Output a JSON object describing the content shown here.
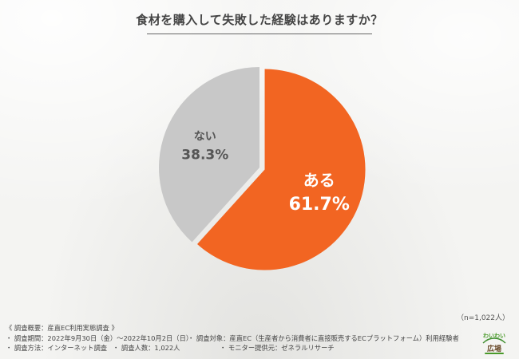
{
  "chart_data": {
    "type": "pie",
    "title": "食材を購入して失敗した経験はありますか？",
    "slices": [
      {
        "label": "ある",
        "value": 61.7,
        "display": "61.7%",
        "color": "#f26522"
      },
      {
        "label": "ない",
        "value": 38.3,
        "display": "38.3%",
        "color": "#c8c8c8"
      }
    ],
    "start": "12 o'clock",
    "direction": "clockwise"
  },
  "sample_size": "（n=1,022人）",
  "notes": {
    "heading": "《 調査概要：産直EC利用実態調査 》",
    "period": "・ 調査期間：2022年9月30日（金）～2022年10月2日（日）",
    "target": "・ 調査対象：産直EC（生産者から消費者に直接販売するECプラットフォーム）利用経験者",
    "method": "・ 調査方法：インターネット調査",
    "count": "・ 調査人数：1,022人",
    "provider": "・ モニター提供元：ゼネラルリサーチ"
  },
  "logo": {
    "top_text": "わいわい",
    "bottom_text": "広場"
  }
}
